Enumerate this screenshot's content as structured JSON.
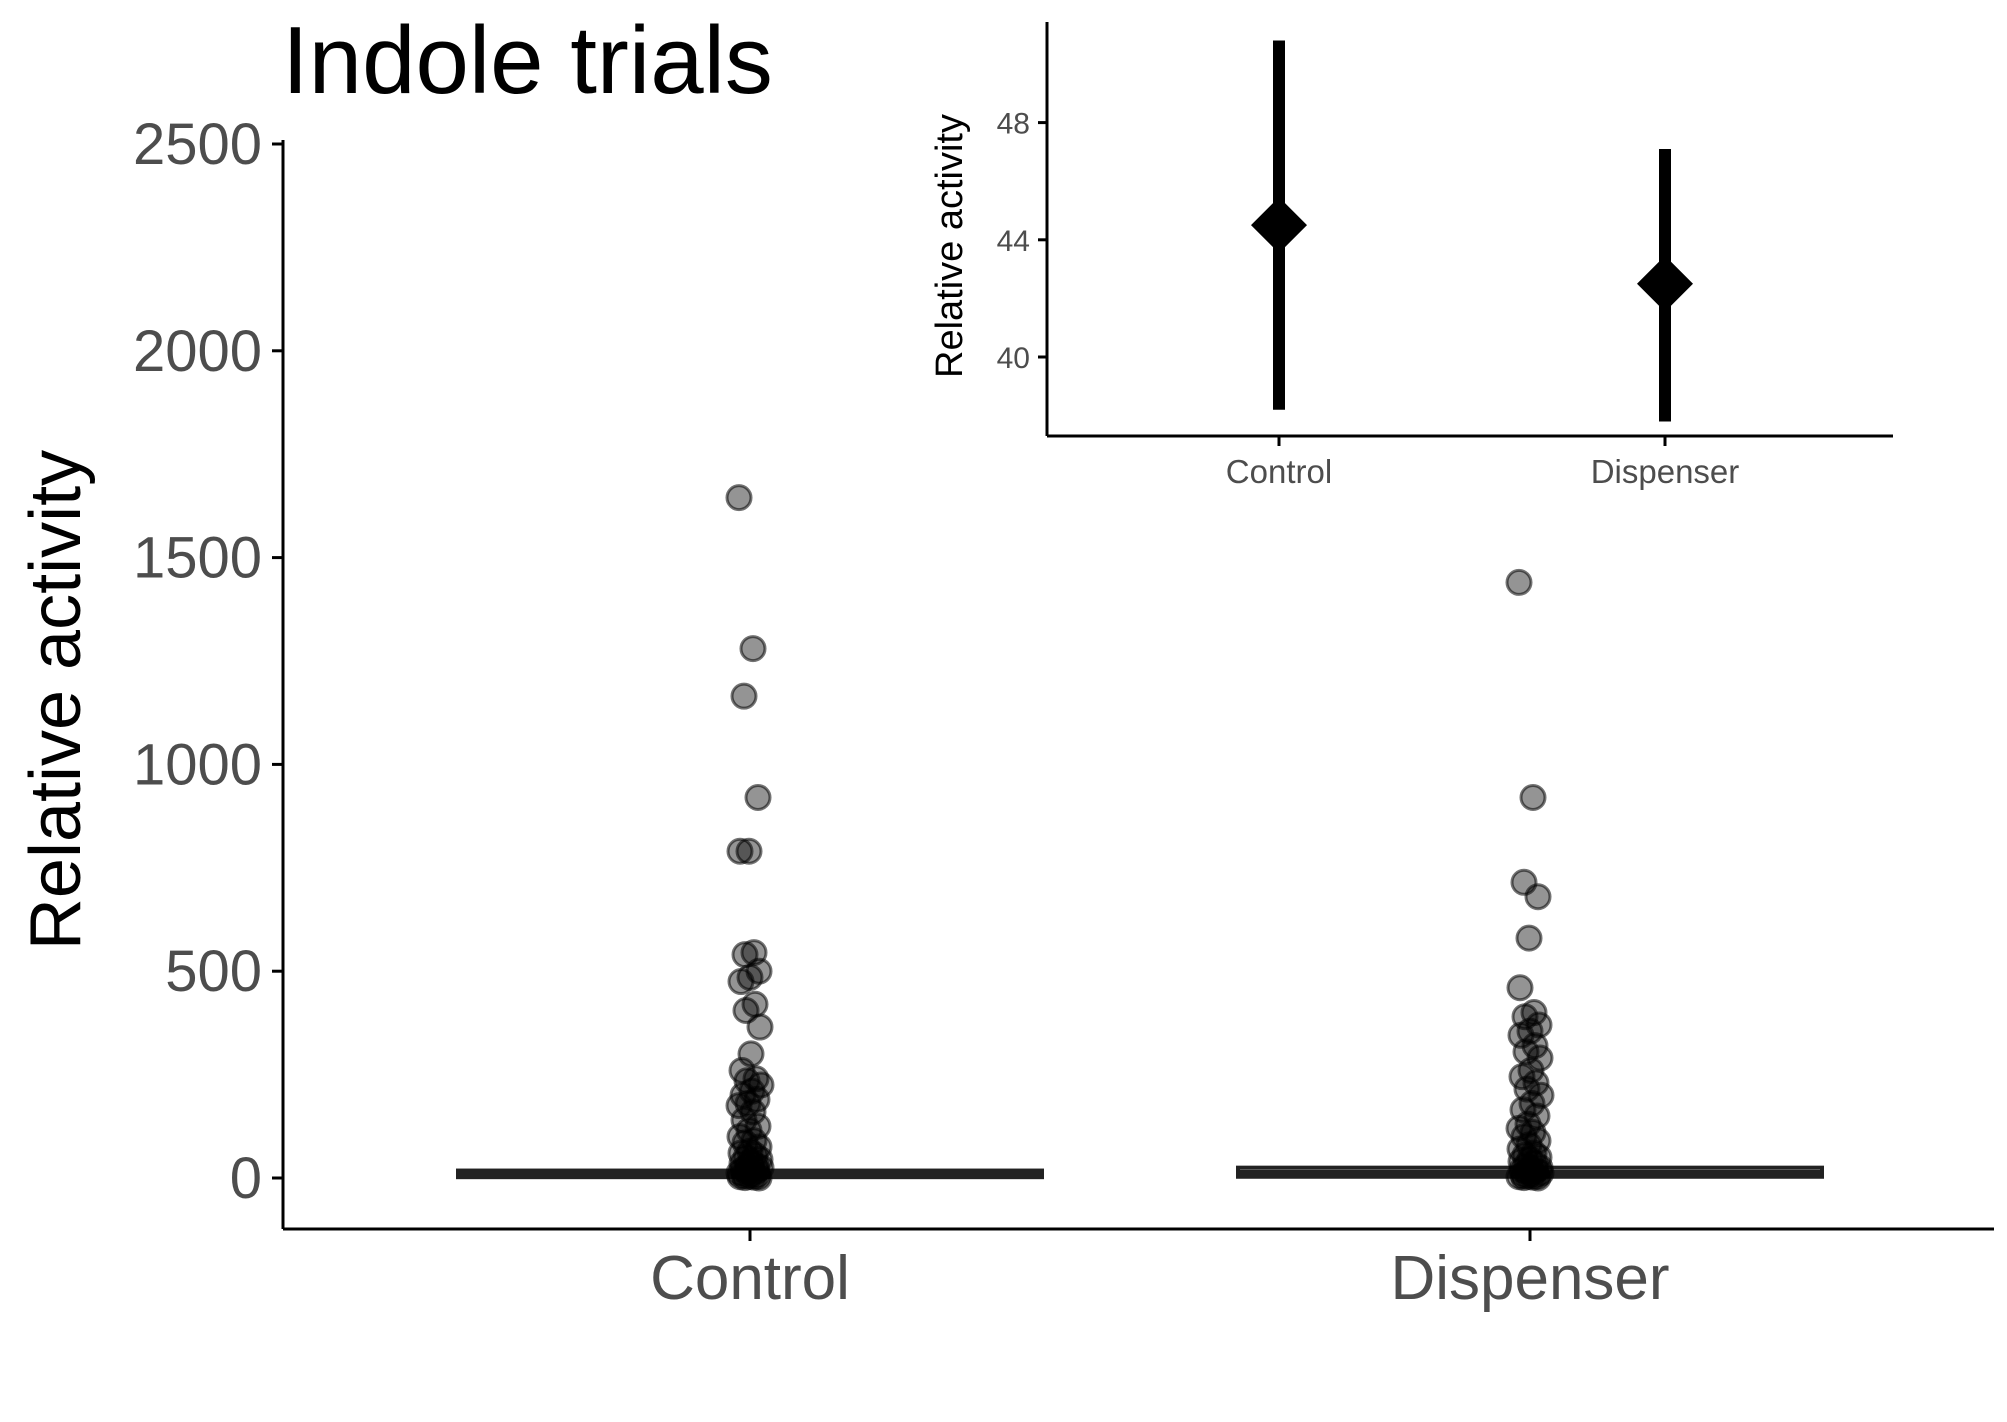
{
  "chart_data": [
    {
      "type": "box+scatter",
      "title": "Indole trials",
      "xlabel": "",
      "ylabel": "Relative activity",
      "categories": [
        "Control",
        "Dispenser"
      ],
      "yticks": [
        0,
        500,
        1000,
        1500,
        2000,
        2500
      ],
      "ylim": [
        -120,
        2520
      ],
      "grid": false,
      "boxes": [
        {
          "category": "Control",
          "q1": 2,
          "median": 8,
          "q3": 18
        },
        {
          "category": "Dispenser",
          "q1": 3,
          "median": 10,
          "q3": 25
        }
      ],
      "points": [
        {
          "category": "Control",
          "values": [
            1645,
            1280,
            1165,
            920,
            790,
            790,
            545,
            540,
            500,
            485,
            475,
            420,
            405,
            365,
            300,
            260,
            240,
            235,
            225,
            210,
            200,
            190,
            180,
            175,
            160,
            140,
            125,
            115,
            100,
            90,
            85,
            75,
            65,
            60,
            55,
            50,
            45,
            40,
            35,
            30,
            28,
            25,
            22,
            20,
            18,
            15,
            12,
            10,
            8,
            6,
            4,
            3,
            2,
            1,
            0
          ]
        },
        {
          "category": "Dispenser",
          "values": [
            1440,
            920,
            715,
            680,
            580,
            460,
            400,
            390,
            370,
            355,
            345,
            320,
            305,
            290,
            260,
            245,
            230,
            215,
            200,
            180,
            165,
            150,
            130,
            120,
            110,
            100,
            90,
            80,
            70,
            60,
            55,
            50,
            45,
            40,
            35,
            30,
            25,
            22,
            20,
            18,
            15,
            12,
            10,
            8,
            6,
            4,
            3,
            2,
            1,
            0
          ]
        }
      ]
    },
    {
      "type": "pointrange",
      "ylabel": "Relative activity",
      "categories": [
        "Control",
        "Dispenser"
      ],
      "yticks": [
        40,
        44,
        48
      ],
      "ylim": [
        37,
        50.5
      ],
      "points": [
        {
          "category": "Control",
          "mean": 44.5,
          "lower": 38.2,
          "upper": 50.8
        },
        {
          "category": "Dispenser",
          "mean": 42.5,
          "lower": 37.8,
          "upper": 47.1
        }
      ]
    }
  ]
}
